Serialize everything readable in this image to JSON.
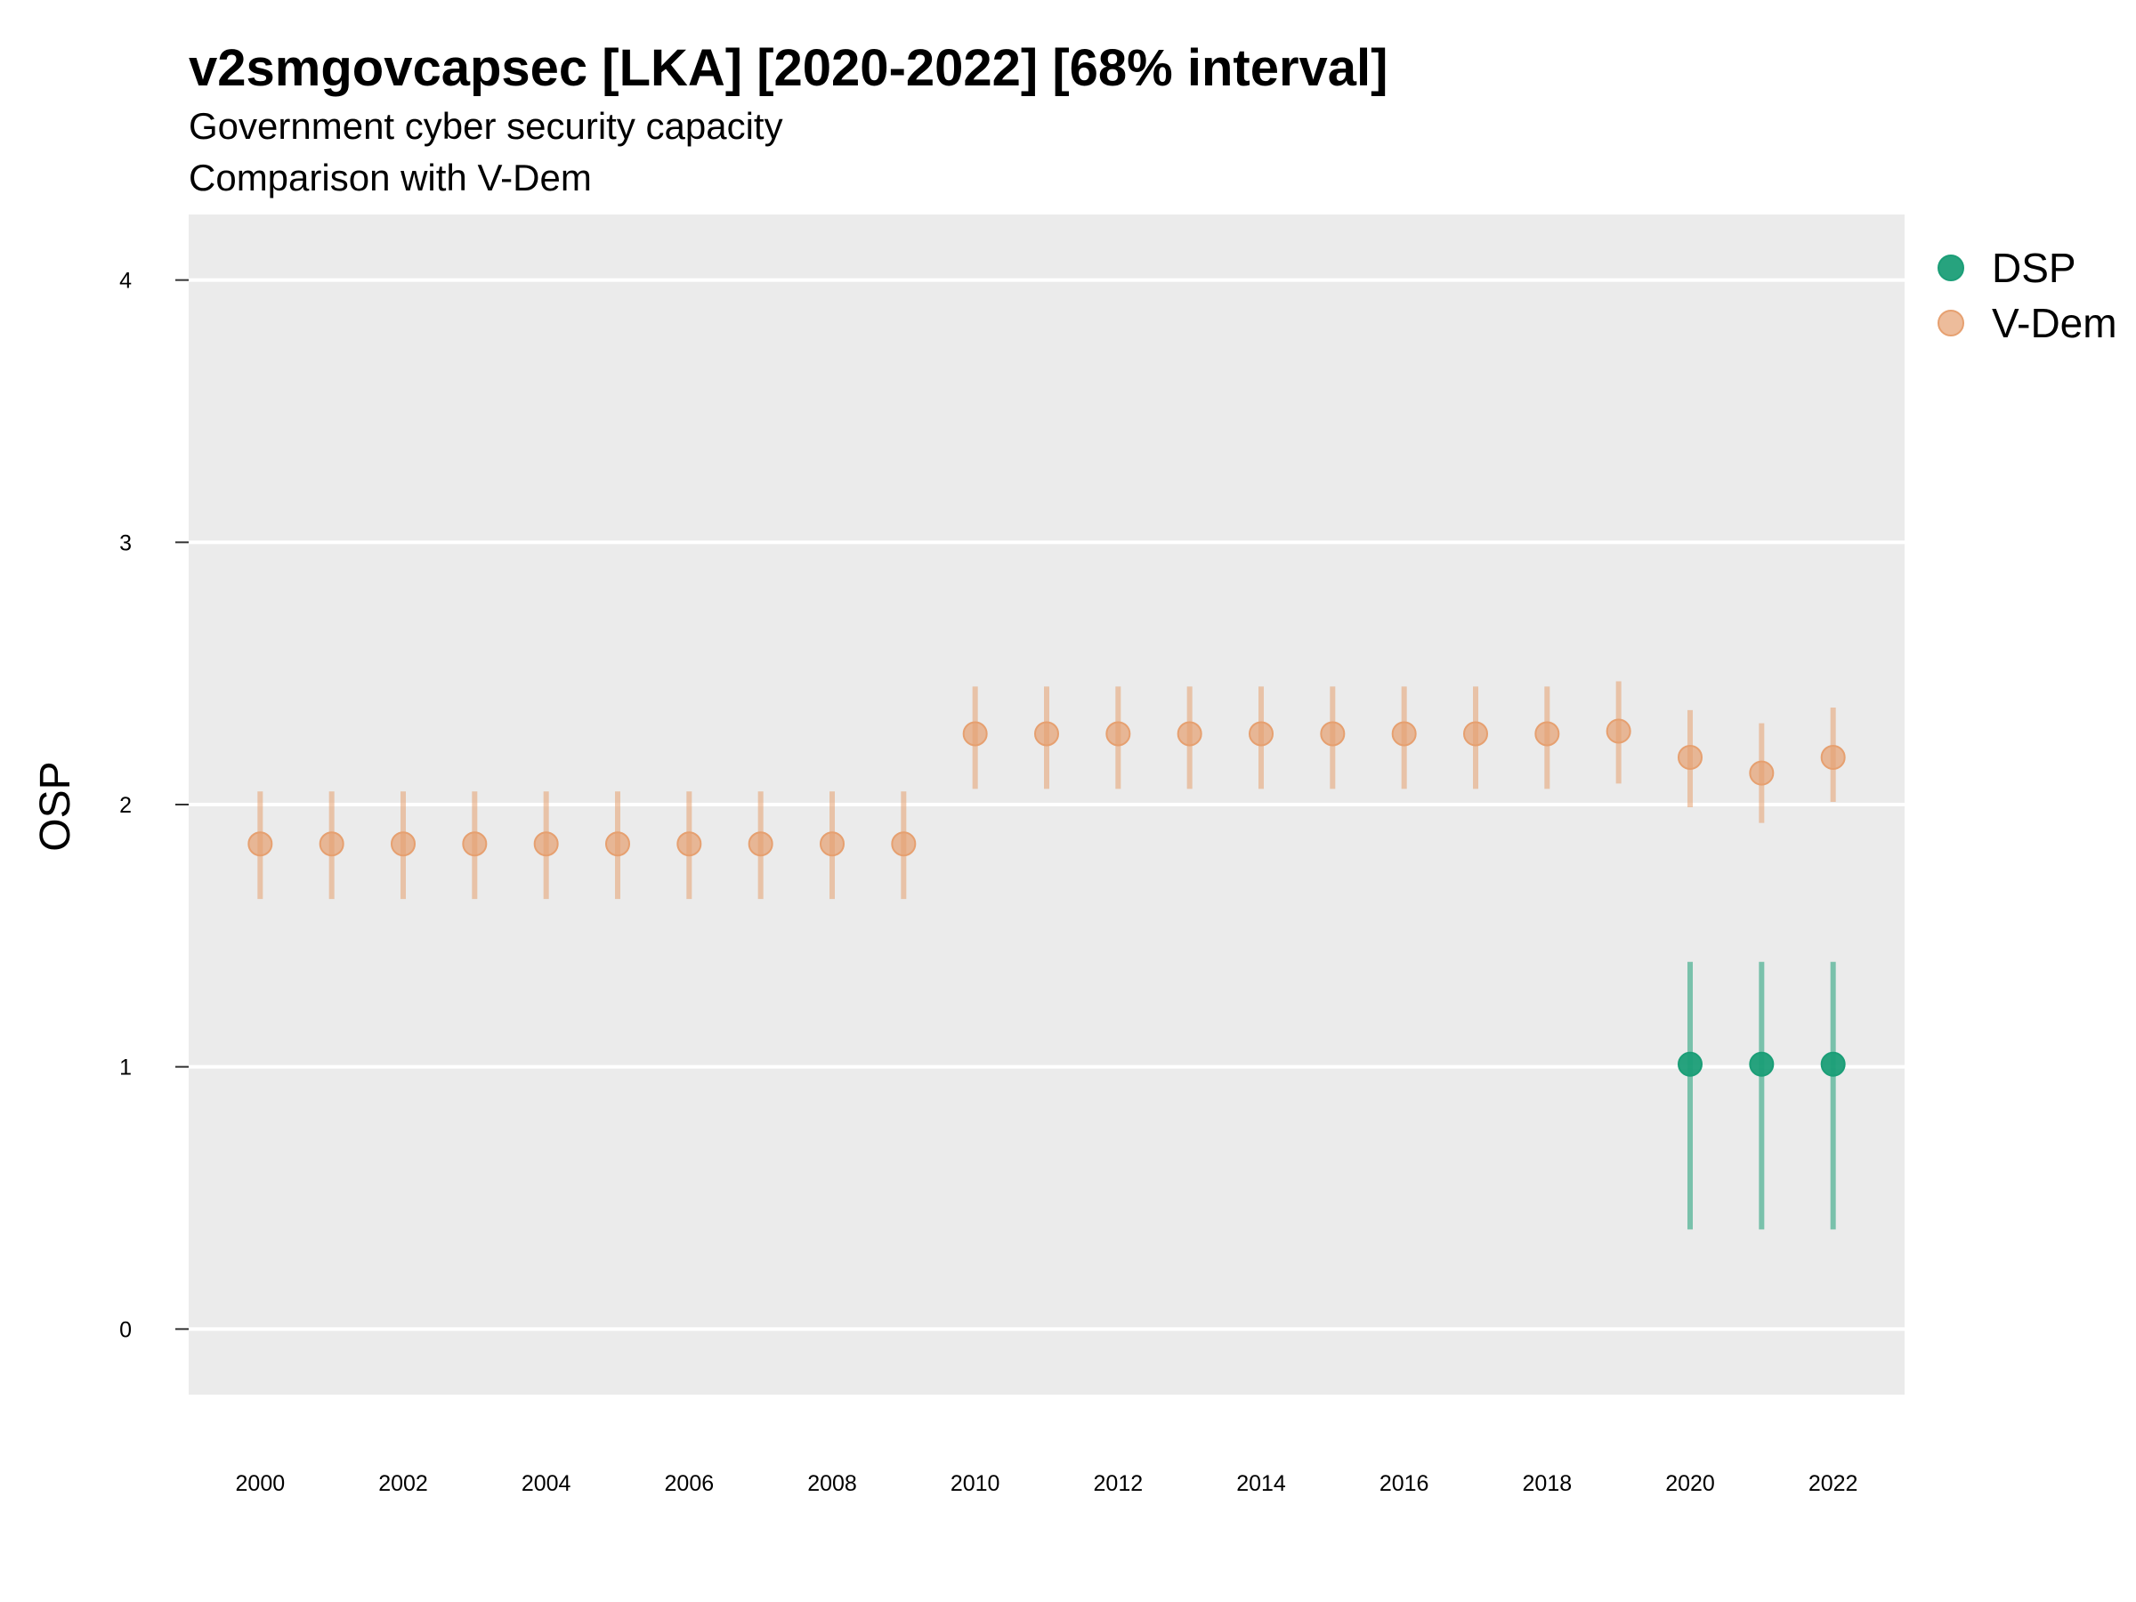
{
  "chart_data": {
    "type": "scatter",
    "title": "v2smgovcapsec [LKA] [2020-2022] [68% interval]",
    "subtitle_line1": "Government cyber security capacity",
    "subtitle_line2": "Comparison with V-Dem",
    "xlabel": "",
    "ylabel": "OSP",
    "xlim": [
      1999,
      2023
    ],
    "ylim": [
      -0.25,
      4.25
    ],
    "x_ticks": [
      2000,
      2002,
      2004,
      2006,
      2008,
      2010,
      2012,
      2014,
      2016,
      2018,
      2020,
      2022
    ],
    "y_ticks": [
      0,
      1,
      2,
      3,
      4
    ],
    "grid": true,
    "legend_position": "right",
    "series": [
      {
        "name": "DSP",
        "color": "#1b9e77",
        "points": [
          {
            "x": 2020,
            "y": 1.01,
            "low": 0.38,
            "high": 1.4
          },
          {
            "x": 2021,
            "y": 1.01,
            "low": 0.38,
            "high": 1.4
          },
          {
            "x": 2022,
            "y": 1.01,
            "low": 0.38,
            "high": 1.4
          }
        ]
      },
      {
        "name": "V-Dem",
        "color": "#e6a070",
        "points": [
          {
            "x": 2000,
            "y": 1.85,
            "low": 1.64,
            "high": 2.05
          },
          {
            "x": 2001,
            "y": 1.85,
            "low": 1.64,
            "high": 2.05
          },
          {
            "x": 2002,
            "y": 1.85,
            "low": 1.64,
            "high": 2.05
          },
          {
            "x": 2003,
            "y": 1.85,
            "low": 1.64,
            "high": 2.05
          },
          {
            "x": 2004,
            "y": 1.85,
            "low": 1.64,
            "high": 2.05
          },
          {
            "x": 2005,
            "y": 1.85,
            "low": 1.64,
            "high": 2.05
          },
          {
            "x": 2006,
            "y": 1.85,
            "low": 1.64,
            "high": 2.05
          },
          {
            "x": 2007,
            "y": 1.85,
            "low": 1.64,
            "high": 2.05
          },
          {
            "x": 2008,
            "y": 1.85,
            "low": 1.64,
            "high": 2.05
          },
          {
            "x": 2009,
            "y": 1.85,
            "low": 1.64,
            "high": 2.05
          },
          {
            "x": 2010,
            "y": 2.27,
            "low": 2.06,
            "high": 2.45
          },
          {
            "x": 2011,
            "y": 2.27,
            "low": 2.06,
            "high": 2.45
          },
          {
            "x": 2012,
            "y": 2.27,
            "low": 2.06,
            "high": 2.45
          },
          {
            "x": 2013,
            "y": 2.27,
            "low": 2.06,
            "high": 2.45
          },
          {
            "x": 2014,
            "y": 2.27,
            "low": 2.06,
            "high": 2.45
          },
          {
            "x": 2015,
            "y": 2.27,
            "low": 2.06,
            "high": 2.45
          },
          {
            "x": 2016,
            "y": 2.27,
            "low": 2.06,
            "high": 2.45
          },
          {
            "x": 2017,
            "y": 2.27,
            "low": 2.06,
            "high": 2.45
          },
          {
            "x": 2018,
            "y": 2.27,
            "low": 2.06,
            "high": 2.45
          },
          {
            "x": 2019,
            "y": 2.28,
            "low": 2.08,
            "high": 2.47
          },
          {
            "x": 2020,
            "y": 2.18,
            "low": 1.99,
            "high": 2.36
          },
          {
            "x": 2021,
            "y": 2.12,
            "low": 1.93,
            "high": 2.31
          },
          {
            "x": 2022,
            "y": 2.18,
            "low": 2.01,
            "high": 2.37
          }
        ]
      }
    ]
  }
}
